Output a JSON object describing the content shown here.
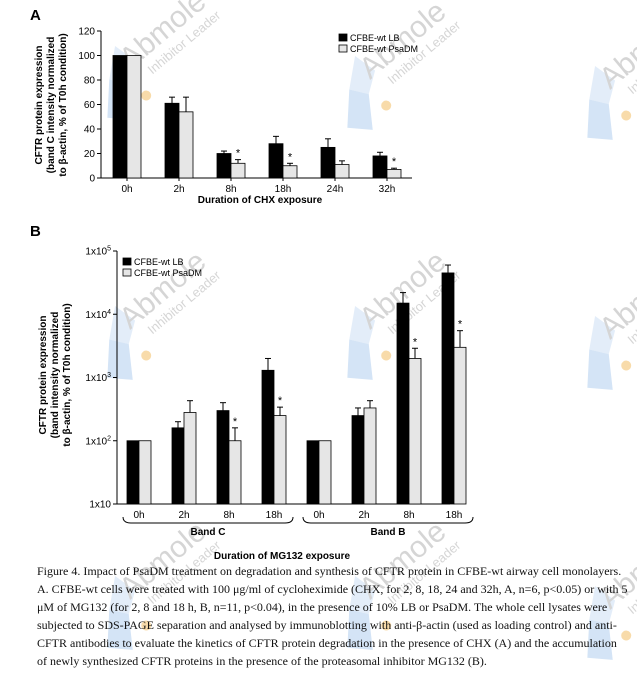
{
  "colors": {
    "lb": "#000000",
    "psadm": "#e6e6e6",
    "watermark": "#b4b4b4",
    "wm_blue": "#8fb8e6",
    "wm_orange": "#f3bf66"
  },
  "watermark": {
    "brand": "Abmole",
    "sub": "Inhibitor Leader"
  },
  "chart_data": [
    {
      "type": "bar",
      "panel_label": "A",
      "ylabel_lines": [
        "CFTR protein expression",
        "(band C intensity normalized",
        "to β-actin, % of T0h condition)"
      ],
      "xlabel": "Duration of CHX exposure",
      "categories": [
        "0h",
        "2h",
        "8h",
        "18h",
        "24h",
        "32h"
      ],
      "ylim": [
        0,
        120
      ],
      "yticks": [
        0,
        20,
        40,
        60,
        80,
        100,
        120
      ],
      "legend_position": "top-right",
      "series": [
        {
          "name": "CFBE-wt LB",
          "values": [
            100,
            61,
            20,
            28,
            25,
            18
          ],
          "errors": [
            0,
            5,
            2,
            6,
            7,
            3
          ]
        },
        {
          "name": "CFBE-wt PsaDM",
          "values": [
            100,
            54,
            12,
            10,
            11,
            7
          ],
          "errors": [
            0,
            12,
            3,
            2,
            3,
            1
          ]
        }
      ],
      "significance": [
        null,
        null,
        "*",
        "*",
        null,
        "*"
      ]
    },
    {
      "type": "bar",
      "panel_label": "B",
      "y_scale": "log",
      "ylabel_lines": [
        "CFTR protein expression",
        "(band intensity normalized",
        "to β-actin, % of T0h condition)"
      ],
      "xlabel": "Duration of MG132 exposure",
      "yticks": [
        {
          "value": 10,
          "label_base": "1x10",
          "label_exp": ""
        },
        {
          "value": 100,
          "label_base": "1x10",
          "label_exp": "2"
        },
        {
          "value": 1000,
          "label_base": "1x10",
          "label_exp": "3"
        },
        {
          "value": 10000,
          "label_base": "1x10",
          "label_exp": "4"
        },
        {
          "value": 100000,
          "label_base": "1x10",
          "label_exp": "5"
        }
      ],
      "ylim": [
        10,
        100000
      ],
      "legend_position": "top-left",
      "groups": [
        {
          "name": "Band C",
          "categories": [
            "0h",
            "2h",
            "8h",
            "18h"
          ],
          "series": [
            {
              "name": "CFBE-wt LB",
              "values": [
                100,
                160,
                300,
                1300
              ],
              "err_up": [
                0,
                200,
                400,
                2000
              ]
            },
            {
              "name": "CFBE-wt PsaDM",
              "values": [
                100,
                280,
                100,
                250
              ],
              "err_up": [
                0,
                430,
                160,
                340
              ]
            }
          ],
          "significance": [
            null,
            null,
            "*",
            "*"
          ]
        },
        {
          "name": "Band B",
          "categories": [
            "0h",
            "2h",
            "8h",
            "18h"
          ],
          "series": [
            {
              "name": "CFBE-wt LB",
              "values": [
                100,
                250,
                15000,
                45000
              ],
              "err_up": [
                0,
                330,
                22000,
                60000
              ]
            },
            {
              "name": "CFBE-wt PsaDM",
              "values": [
                100,
                330,
                2000,
                3000
              ],
              "err_up": [
                0,
                430,
                2900,
                5500
              ]
            }
          ],
          "significance": [
            null,
            null,
            "*",
            "*"
          ]
        }
      ]
    }
  ],
  "caption": {
    "lead": "Figure 4. Impact of PsaDM treatment on degradation and synthesis of CFTR protein in CFBE-wt airway cell monolayers.",
    "body": "A. CFBE-wt cells were treated with 100 μg/ml of cycloheximide (CHX, for 2, 8, 18, 24 and 32h, A, n=6, p<0.05) or with 5 μM of MG132 (for 2, 8 and 18 h, B, n=11, p<0.04), in the presence of 10% LB or PsaDM. The whole cell lysates were subjected to SDS-PAGE separation and analysed by immunoblotting with anti-β-actin (used as loading control) and anti-CFTR antibodies to evaluate the kinetics of CFTR protein degradation in the presence of CHX (A) and the accumulation of newly synthesized CFTR proteins in the presence of the proteasomal inhibitor MG132 (B)."
  }
}
